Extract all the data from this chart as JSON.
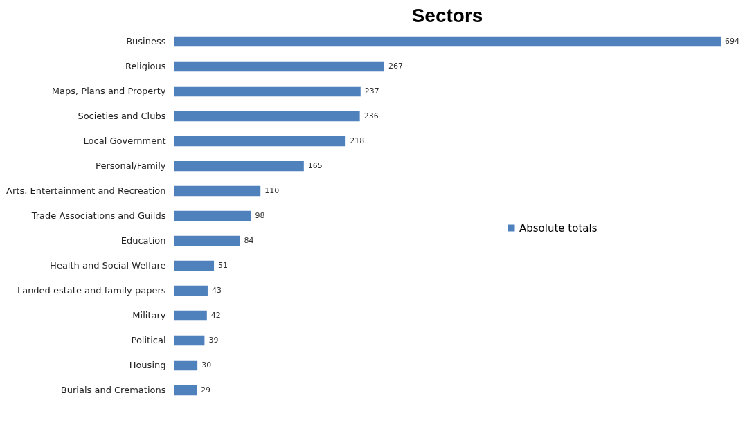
{
  "chart_data": {
    "type": "bar",
    "title": "Sectors",
    "orientation": "horizontal",
    "categories": [
      "Business",
      "Religious",
      "Maps, Plans and Property",
      "Societies and Clubs",
      "Local Government",
      "Personal/Family",
      "Arts, Entertainment and Recreation",
      "Trade Associations and Guilds",
      "Education",
      "Health and Social Welfare",
      "Landed estate and family papers",
      "Military",
      "Political",
      "Housing",
      "Burials and Cremations"
    ],
    "series": [
      {
        "name": "Absolute totals",
        "color": "#4f81bd",
        "values": [
          694,
          267,
          237,
          236,
          218,
          165,
          110,
          98,
          84,
          51,
          43,
          42,
          39,
          30,
          29
        ]
      }
    ],
    "data_labels": true,
    "legend": "right"
  }
}
